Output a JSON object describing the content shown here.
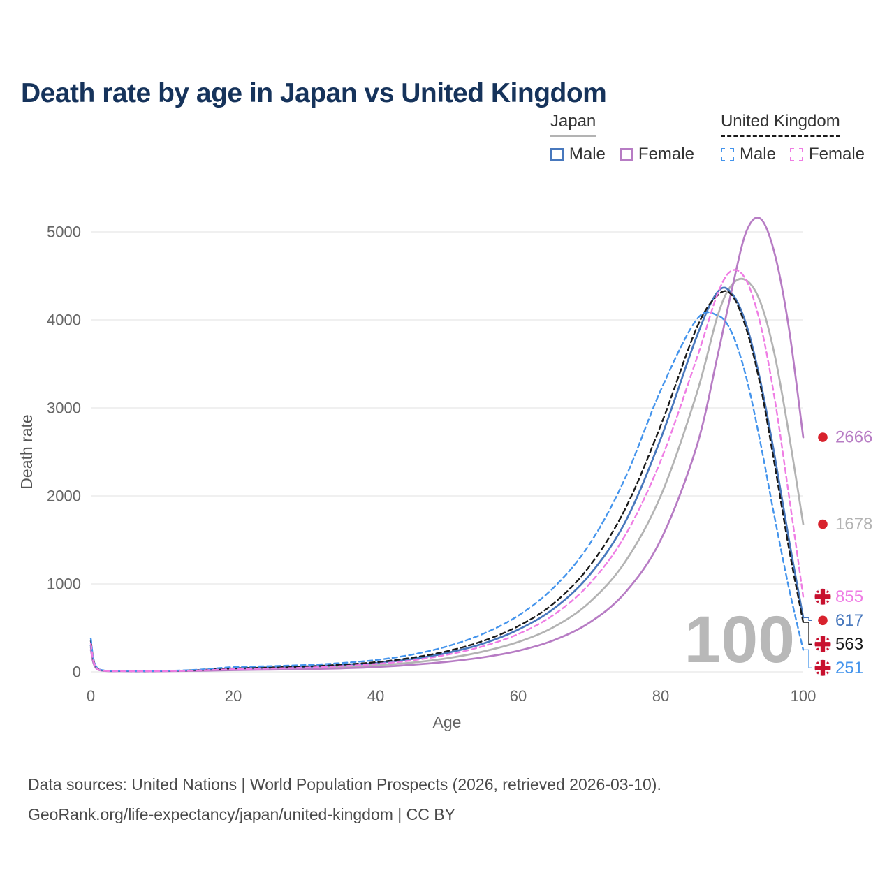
{
  "title": "Death rate by age in Japan vs United Kingdom",
  "legend": {
    "groups": [
      {
        "label": "Japan",
        "line_style": "solid",
        "line_color": "#b3b3b3",
        "items": [
          {
            "label": "Male",
            "color": "#4878bd",
            "style": "solid"
          },
          {
            "label": "Female",
            "color": "#b77cc4",
            "style": "solid"
          }
        ]
      },
      {
        "label": "United Kingdom",
        "line_style": "dashed",
        "line_color": "#1a1a1a",
        "items": [
          {
            "label": "Male",
            "color": "#4494ec",
            "style": "dashed"
          },
          {
            "label": "Female",
            "color": "#ef7de4",
            "style": "dashed"
          }
        ]
      }
    ]
  },
  "age_indicator": "100",
  "footer": {
    "line1": "Data sources: United Nations | World Population Prospects (2026, retrieved 2026-03-10).",
    "line2": "GeoRank.org/life-expectancy/japan/united-kingdom | CC BY"
  },
  "chart_data": {
    "type": "line",
    "title": "Death rate by age in Japan vs United Kingdom",
    "xlabel": "Age",
    "ylabel": "Death rate",
    "xlim": [
      0,
      100
    ],
    "ylim": [
      0,
      5000
    ],
    "x_ticks": [
      0,
      20,
      40,
      60,
      80,
      100
    ],
    "y_ticks": [
      0,
      1000,
      2000,
      3000,
      4000,
      5000
    ],
    "grid": "horizontal",
    "legend_position": "top-right",
    "x": [
      0,
      1,
      5,
      10,
      15,
      20,
      25,
      30,
      35,
      40,
      45,
      50,
      55,
      60,
      65,
      70,
      75,
      80,
      85,
      88,
      90,
      92,
      94,
      96,
      98,
      100
    ],
    "series": [
      {
        "name": "Japan",
        "color": "#b3b3b3",
        "dash": "solid",
        "flag": "japan",
        "end_value": 1678,
        "values": [
          280,
          28,
          9,
          9,
          15,
          28,
          35,
          42,
          55,
          75,
          105,
          155,
          230,
          340,
          510,
          790,
          1250,
          2000,
          3150,
          4050,
          4400,
          4450,
          4200,
          3600,
          2700,
          1678
        ]
      },
      {
        "name": "Japan Male",
        "color": "#4878bd",
        "dash": "solid",
        "flag": "japan",
        "end_value": 617,
        "values": [
          300,
          30,
          10,
          10,
          18,
          38,
          48,
          58,
          75,
          100,
          145,
          215,
          320,
          480,
          720,
          1100,
          1700,
          2650,
          3800,
          4320,
          4300,
          3950,
          3300,
          2450,
          1500,
          617
        ]
      },
      {
        "name": "Japan Female",
        "color": "#b77cc4",
        "dash": "solid",
        "flag": "japan",
        "end_value": 2666,
        "values": [
          250,
          25,
          8,
          8,
          12,
          20,
          25,
          30,
          40,
          55,
          80,
          115,
          165,
          240,
          360,
          560,
          900,
          1500,
          2550,
          3600,
          4350,
          5000,
          5150,
          4750,
          3900,
          2666
        ]
      },
      {
        "name": "United Kingdom",
        "color": "#1a1a1a",
        "dash": "dashed",
        "flag": "uk",
        "end_value": 563,
        "values": [
          350,
          32,
          10,
          10,
          20,
          40,
          50,
          62,
          82,
          110,
          160,
          235,
          350,
          520,
          780,
          1200,
          1850,
          2800,
          3900,
          4280,
          4280,
          3900,
          3250,
          2350,
          1400,
          563
        ]
      },
      {
        "name": "United Kingdom Male",
        "color": "#4494ec",
        "dash": "dashed",
        "flag": "uk",
        "end_value": 251,
        "values": [
          380,
          35,
          11,
          11,
          25,
          55,
          65,
          78,
          100,
          135,
          195,
          290,
          430,
          640,
          960,
          1450,
          2200,
          3200,
          4000,
          4050,
          3850,
          3350,
          2600,
          1750,
          950,
          251
        ]
      },
      {
        "name": "United Kingdom Female",
        "color": "#ef7de4",
        "dash": "dashed",
        "flag": "uk",
        "end_value": 855,
        "values": [
          320,
          28,
          9,
          9,
          16,
          30,
          38,
          48,
          65,
          90,
          130,
          195,
          290,
          430,
          650,
          1000,
          1550,
          2400,
          3550,
          4300,
          4560,
          4450,
          3950,
          3100,
          2000,
          855
        ]
      }
    ]
  }
}
